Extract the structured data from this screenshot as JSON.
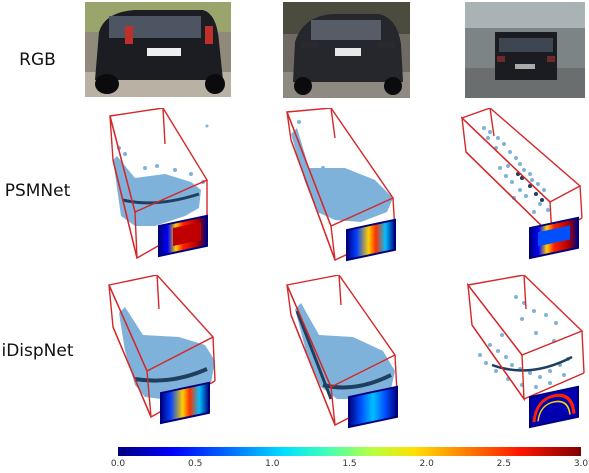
{
  "rows": [
    {
      "label": "RGB"
    },
    {
      "label": "PSMNet"
    },
    {
      "label": "iDispNet"
    }
  ],
  "colorbar": {
    "ticks": [
      "0.0",
      "0.5",
      "1.0",
      "1.5",
      "2.0",
      "2.5",
      "3.0"
    ],
    "min": 0.0,
    "max": 3.0
  },
  "colors": {
    "box_edge": "#d62728",
    "point_cloud": "#7fb2da",
    "point_cloud_dark": "#1f3f5f"
  }
}
